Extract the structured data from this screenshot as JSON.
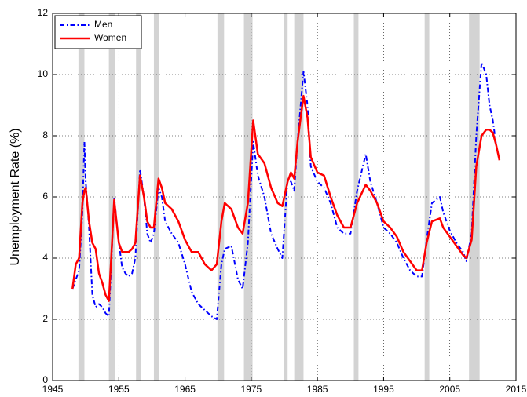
{
  "chart_data": {
    "type": "line",
    "y_label": "Unemployment Rate (%)",
    "x": [
      1948,
      1948.5,
      1949,
      1949.5,
      1949.8,
      1950,
      1950.5,
      1951,
      1951.5,
      1952,
      1952.5,
      1953,
      1953.5,
      1954,
      1954.3,
      1955,
      1955.5,
      1956,
      1956.5,
      1957,
      1957.5,
      1958.2,
      1958.8,
      1959.3,
      1959.8,
      1960.3,
      1961,
      1961.5,
      1962,
      1963,
      1964,
      1965,
      1966,
      1967,
      1968,
      1969,
      1969.8,
      1970.5,
      1971,
      1972,
      1973,
      1973.7,
      1974.5,
      1975.3,
      1976,
      1977,
      1978,
      1979,
      1979.7,
      1980.5,
      1981,
      1981.5,
      1982,
      1982.9,
      1983.5,
      1984,
      1985,
      1986,
      1987,
      1988,
      1989,
      1990,
      1991,
      1992.3,
      1993,
      1994,
      1995,
      1996,
      1997,
      1998,
      1999,
      2000,
      2000.8,
      2001.5,
      2002.3,
      2003.5,
      2004,
      2005,
      2006,
      2007,
      2007.5,
      2008.3,
      2009,
      2009.8,
      2010.5,
      2011,
      2011.5,
      2012,
      2012.5
    ],
    "series": [
      {
        "name": "Men",
        "color": "#0000ff",
        "dash": "dashdot",
        "values": [
          3.0,
          3.3,
          3.6,
          5.5,
          7.8,
          6.5,
          5.0,
          2.8,
          2.4,
          2.5,
          2.4,
          2.2,
          2.1,
          4.5,
          6.0,
          4.5,
          3.7,
          3.5,
          3.4,
          3.5,
          4.0,
          6.9,
          6.0,
          4.8,
          4.5,
          4.8,
          6.3,
          6.0,
          5.2,
          4.8,
          4.5,
          3.8,
          2.9,
          2.5,
          2.3,
          2.1,
          2.0,
          3.8,
          4.3,
          4.4,
          3.3,
          3.0,
          4.5,
          7.8,
          6.7,
          6.0,
          4.8,
          4.3,
          4.0,
          6.6,
          6.5,
          6.2,
          7.8,
          10.1,
          9.0,
          7.0,
          6.5,
          6.3,
          5.8,
          5.0,
          4.8,
          4.8,
          6.2,
          7.4,
          6.5,
          5.8,
          5.0,
          4.8,
          4.5,
          4.0,
          3.6,
          3.4,
          3.4,
          4.6,
          5.8,
          6.0,
          5.5,
          4.9,
          4.5,
          4.2,
          3.9,
          4.8,
          8.0,
          10.4,
          10.0,
          9.0,
          8.5,
          7.7,
          7.2
        ]
      },
      {
        "name": "Women",
        "color": "#ff0000",
        "dash": "solid",
        "values": [
          3.0,
          3.8,
          4.0,
          5.8,
          6.2,
          6.3,
          5.2,
          4.5,
          4.3,
          3.5,
          3.2,
          2.8,
          2.6,
          4.6,
          5.9,
          4.5,
          4.2,
          4.2,
          4.2,
          4.3,
          4.5,
          6.7,
          6.0,
          5.2,
          5.0,
          5.0,
          6.6,
          6.3,
          5.8,
          5.6,
          5.2,
          4.6,
          4.2,
          4.2,
          3.8,
          3.6,
          3.8,
          5.2,
          5.8,
          5.6,
          5.0,
          4.8,
          5.8,
          8.5,
          7.4,
          7.1,
          6.3,
          5.8,
          5.7,
          6.5,
          6.8,
          6.6,
          7.8,
          9.3,
          8.6,
          7.3,
          6.8,
          6.7,
          6.0,
          5.4,
          5.0,
          5.0,
          5.8,
          6.4,
          6.2,
          5.8,
          5.2,
          5.0,
          4.7,
          4.2,
          3.9,
          3.6,
          3.6,
          4.5,
          5.2,
          5.3,
          5.0,
          4.7,
          4.4,
          4.1,
          4.0,
          4.6,
          7.0,
          8.0,
          8.2,
          8.2,
          8.1,
          7.7,
          7.2
        ]
      }
    ],
    "recessions": [
      [
        1948.9,
        1949.8
      ],
      [
        1953.5,
        1954.4
      ],
      [
        1957.6,
        1958.3
      ],
      [
        1960.3,
        1961.1
      ],
      [
        1969.9,
        1970.9
      ],
      [
        1973.9,
        1975.2
      ],
      [
        1980.0,
        1980.5
      ],
      [
        1981.5,
        1982.9
      ],
      [
        1990.5,
        1991.2
      ],
      [
        2001.2,
        2001.9
      ],
      [
        2007.9,
        2009.5
      ]
    ],
    "recession_color": "#d3d3d3",
    "xlim": [
      1945,
      2015
    ],
    "xticks": [
      1945,
      1955,
      1965,
      1975,
      1985,
      1995,
      2005,
      2015
    ],
    "ylim": [
      0,
      12
    ],
    "yticks": [
      0,
      2,
      4,
      6,
      8,
      10,
      12
    ],
    "grid": true,
    "legend": "upper-left"
  }
}
